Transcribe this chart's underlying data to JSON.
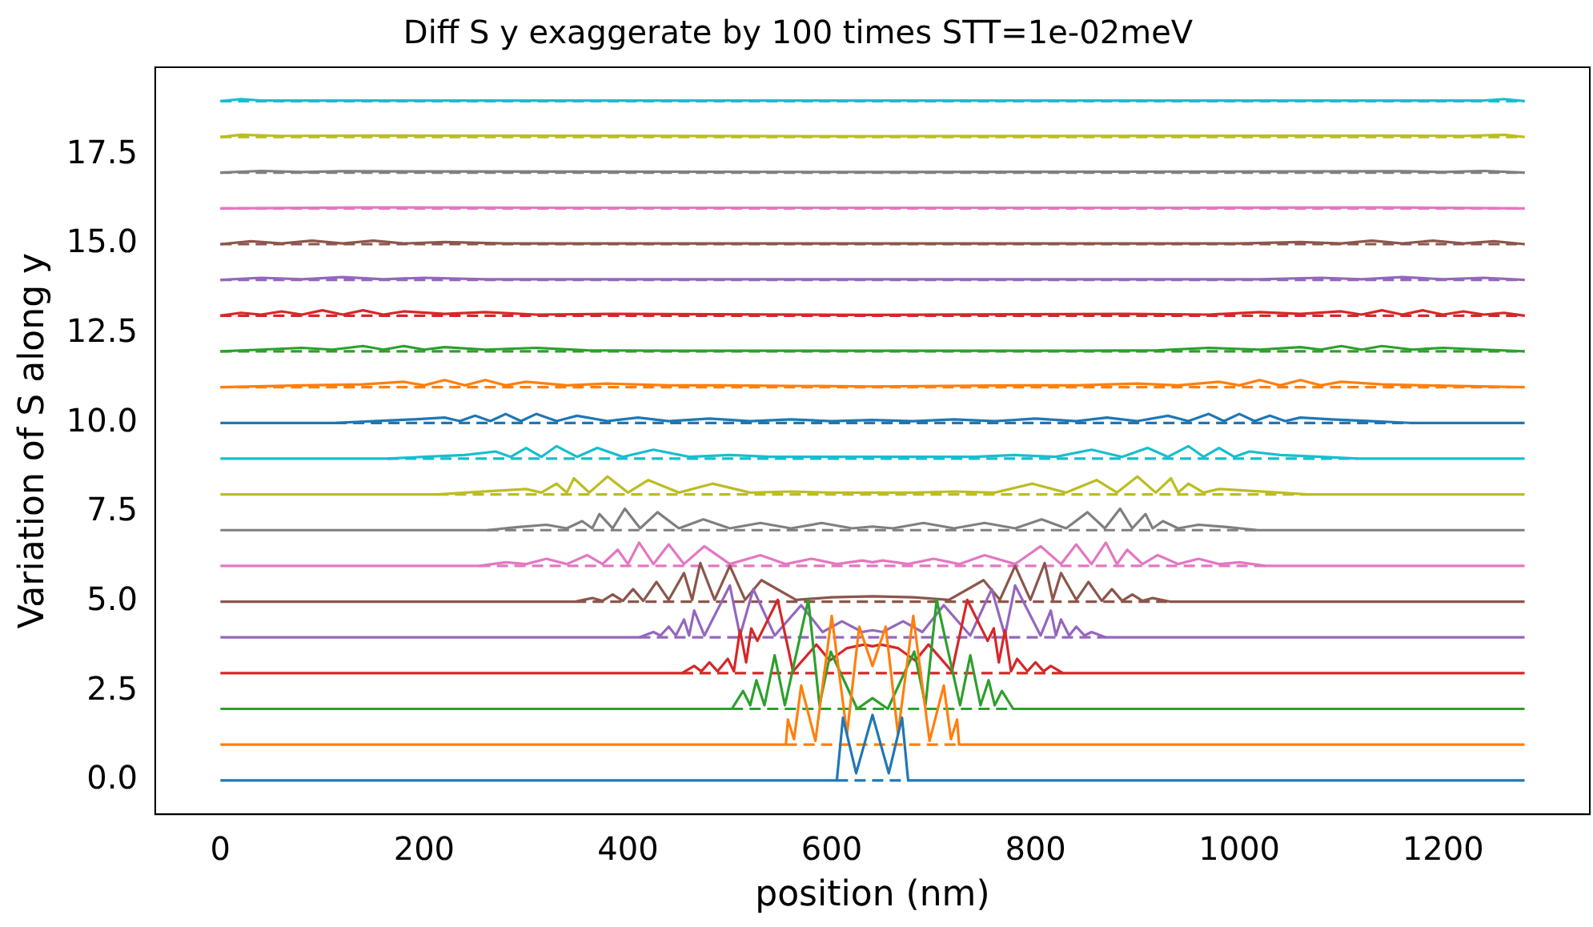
{
  "chart_data": {
    "type": "line",
    "title": "Diff S y exaggerate by 100 times STT=1e-02meV",
    "xlabel": "position (nm)",
    "ylabel": "Variation of S along y",
    "xlim": [
      -64,
      1344
    ],
    "ylim": [
      -0.95,
      19.95
    ],
    "xticks": [
      0,
      200,
      400,
      600,
      800,
      1000,
      1200
    ],
    "yticks": [
      {
        "value": 0,
        "label": "0.0"
      },
      {
        "value": 2.5,
        "label": "2.5"
      },
      {
        "value": 5,
        "label": "5.0"
      },
      {
        "value": 7.5,
        "label": "7.5"
      },
      {
        "value": 10,
        "label": "10.0"
      },
      {
        "value": 12.5,
        "label": "12.5"
      },
      {
        "value": 15,
        "label": "15.0"
      },
      {
        "value": 17.5,
        "label": "17.5"
      }
    ],
    "grid": false,
    "legend": false,
    "marker": "none",
    "series": [
      {
        "color": "#1f77b4",
        "line_style": "solid",
        "x": [
          0,
          605,
          611,
          624,
          640,
          656,
          669,
          675,
          1280
        ],
        "values": [
          0,
          0,
          1.75,
          0.2,
          1.83,
          0.2,
          1.75,
          0,
          0
        ]
      },
      {
        "color": "#1f77b4",
        "line_style": "dashed",
        "x": [
          605,
          675
        ],
        "values": [
          0,
          0
        ]
      },
      {
        "color": "#ff7f0e",
        "line_style": "solid",
        "x": [
          0,
          555,
          557,
          563,
          570,
          584,
          600,
          615,
          627,
          640,
          653,
          665,
          680,
          696,
          710,
          717,
          723,
          725,
          1280
        ],
        "values": [
          1,
          1,
          1.7,
          1.15,
          2.65,
          1.1,
          4.6,
          1.3,
          4.3,
          3.2,
          4.3,
          1.3,
          4.6,
          1.1,
          2.65,
          1.15,
          1.7,
          1,
          1
        ]
      },
      {
        "color": "#ff7f0e",
        "line_style": "dashed",
        "x": [
          555,
          725
        ],
        "values": [
          1,
          1
        ]
      },
      {
        "color": "#2ca02c",
        "line_style": "solid",
        "x": [
          0,
          502,
          513,
          520,
          526,
          534,
          544,
          554,
          577,
          588,
          599,
          625,
          640,
          655,
          681,
          692,
          703,
          726,
          736,
          746,
          754,
          760,
          767,
          778,
          1280
        ],
        "values": [
          2,
          2,
          2.5,
          2.1,
          2.8,
          2.1,
          3.5,
          2.1,
          5.05,
          2.1,
          3.6,
          2,
          2.3,
          2,
          3.6,
          2.1,
          5.05,
          2.1,
          3.5,
          2.1,
          2.8,
          2.1,
          2.5,
          2,
          2
        ]
      },
      {
        "color": "#2ca02c",
        "line_style": "dashed",
        "x": [
          502,
          778
        ],
        "values": [
          2,
          2
        ]
      },
      {
        "color": "#d62728",
        "line_style": "solid",
        "x": [
          0,
          453,
          465,
          472,
          480,
          488,
          498,
          504,
          510,
          516,
          521,
          527,
          547,
          562,
          585,
          598,
          615,
          632,
          640,
          648,
          665,
          682,
          695,
          718,
          733,
          753,
          759,
          764,
          770,
          776,
          782,
          792,
          800,
          808,
          815,
          827,
          1280
        ],
        "values": [
          3,
          3,
          3.2,
          3.05,
          3.3,
          3.05,
          3.4,
          3.05,
          4.2,
          3.3,
          4.25,
          3.9,
          5.05,
          3.05,
          3.8,
          3.35,
          3.7,
          3.8,
          3.75,
          3.8,
          3.7,
          3.35,
          3.8,
          3.05,
          5.05,
          3.9,
          4.25,
          3.3,
          4.2,
          3.05,
          3.4,
          3.05,
          3.3,
          3.05,
          3.2,
          3,
          3
        ]
      },
      {
        "color": "#d62728",
        "line_style": "dashed",
        "x": [
          453,
          827
        ],
        "values": [
          3,
          3
        ]
      },
      {
        "color": "#9467bd",
        "line_style": "solid",
        "x": [
          0,
          411,
          425,
          432,
          440,
          447,
          455,
          460,
          465,
          475,
          500,
          510,
          523,
          544,
          570,
          591,
          610,
          630,
          640,
          650,
          670,
          689,
          710,
          736,
          757,
          770,
          780,
          805,
          815,
          820,
          825,
          833,
          840,
          848,
          855,
          869,
          1280
        ],
        "values": [
          4,
          4,
          4.15,
          4.05,
          4.3,
          4.05,
          4.5,
          4.05,
          4.75,
          4.05,
          5.45,
          4.05,
          5.35,
          4.05,
          4.9,
          4.15,
          4.45,
          4.15,
          4.2,
          4.15,
          4.45,
          4.15,
          4.9,
          4.05,
          5.35,
          4.05,
          5.45,
          4.05,
          4.75,
          4.05,
          4.5,
          4.05,
          4.3,
          4.05,
          4.15,
          4,
          4
        ]
      },
      {
        "color": "#9467bd",
        "line_style": "dashed",
        "x": [
          411,
          869
        ],
        "values": [
          4,
          4
        ]
      },
      {
        "color": "#8c564b",
        "line_style": "solid",
        "x": [
          0,
          348,
          365,
          375,
          385,
          395,
          405,
          415,
          428,
          440,
          455,
          463,
          471,
          485,
          500,
          515,
          531,
          565,
          600,
          640,
          680,
          715,
          749,
          765,
          780,
          795,
          809,
          817,
          825,
          840,
          852,
          865,
          875,
          885,
          895,
          905,
          915,
          932,
          1280
        ],
        "values": [
          5,
          5,
          5.1,
          5.02,
          5.2,
          5.02,
          5.35,
          5.02,
          5.55,
          5.05,
          5.8,
          5.05,
          6.08,
          5.05,
          6,
          5.05,
          5.6,
          5.05,
          5.12,
          5.15,
          5.12,
          5.05,
          5.6,
          5.05,
          6,
          5.05,
          6.08,
          5.05,
          5.8,
          5.05,
          5.55,
          5.02,
          5.35,
          5.02,
          5.2,
          5.02,
          5.1,
          5,
          5
        ]
      },
      {
        "color": "#8c564b",
        "line_style": "dashed",
        "x": [
          348,
          932
        ],
        "values": [
          5,
          5
        ]
      },
      {
        "color": "#e377c2",
        "line_style": "solid",
        "x": [
          0,
          254,
          280,
          300,
          320,
          340,
          360,
          375,
          390,
          400,
          411,
          425,
          440,
          455,
          475,
          500,
          530,
          555,
          580,
          605,
          630,
          640,
          650,
          675,
          700,
          725,
          750,
          780,
          805,
          825,
          840,
          855,
          869,
          880,
          890,
          905,
          920,
          940,
          960,
          980,
          1000,
          1026,
          1280
        ],
        "values": [
          6,
          6,
          6.1,
          6.05,
          6.2,
          6.05,
          6.3,
          6.05,
          6.45,
          6.05,
          6.65,
          6.05,
          6.6,
          6.05,
          6.55,
          6.05,
          6.3,
          6.05,
          6.2,
          6.05,
          6.15,
          6.1,
          6.15,
          6.05,
          6.2,
          6.05,
          6.3,
          6.05,
          6.55,
          6.05,
          6.6,
          6.05,
          6.65,
          6.05,
          6.45,
          6.05,
          6.3,
          6.05,
          6.2,
          6.05,
          6.1,
          6,
          6
        ]
      },
      {
        "color": "#e377c2",
        "line_style": "dashed",
        "x": [
          254,
          1026
        ],
        "values": [
          6,
          6
        ]
      },
      {
        "color": "#7f7f7f",
        "line_style": "solid",
        "x": [
          0,
          262,
          290,
          320,
          340,
          355,
          365,
          372,
          385,
          397,
          412,
          429,
          450,
          474,
          500,
          530,
          560,
          590,
          620,
          640,
          660,
          690,
          720,
          750,
          780,
          806,
          830,
          851,
          868,
          883,
          895,
          908,
          915,
          925,
          940,
          960,
          990,
          1018,
          1280
        ],
        "values": [
          7,
          7,
          7.08,
          7.15,
          7.05,
          7.25,
          7.05,
          7.45,
          7.05,
          7.6,
          7.05,
          7.5,
          7.05,
          7.3,
          7.05,
          7.2,
          7.05,
          7.2,
          7.05,
          7.1,
          7.05,
          7.2,
          7.05,
          7.2,
          7.05,
          7.3,
          7.05,
          7.5,
          7.05,
          7.6,
          7.05,
          7.45,
          7.05,
          7.25,
          7.05,
          7.15,
          7.08,
          7,
          7
        ]
      },
      {
        "color": "#7f7f7f",
        "line_style": "dashed",
        "x": [
          262,
          1018
        ],
        "values": [
          7,
          7
        ]
      },
      {
        "color": "#bcbd22",
        "line_style": "solid",
        "x": [
          0,
          213,
          240,
          270,
          300,
          315,
          330,
          340,
          347,
          362,
          380,
          400,
          420,
          450,
          483,
          520,
          560,
          600,
          640,
          680,
          720,
          760,
          797,
          830,
          860,
          880,
          900,
          918,
          933,
          940,
          950,
          965,
          980,
          1010,
          1040,
          1067,
          1280
        ],
        "values": [
          8,
          8,
          8.05,
          8.1,
          8.15,
          8.05,
          8.3,
          8.05,
          8.45,
          8.05,
          8.5,
          8.05,
          8.4,
          8.05,
          8.3,
          8.05,
          8.08,
          8.05,
          8.05,
          8.05,
          8.08,
          8.05,
          8.3,
          8.05,
          8.4,
          8.05,
          8.5,
          8.05,
          8.45,
          8.05,
          8.3,
          8.05,
          8.15,
          8.1,
          8.05,
          8,
          8
        ]
      },
      {
        "color": "#bcbd22",
        "line_style": "dashed",
        "x": [
          213,
          1067
        ],
        "values": [
          8,
          8
        ]
      },
      {
        "color": "#17becf",
        "line_style": "solid",
        "x": [
          0,
          164,
          200,
          240,
          270,
          285,
          300,
          315,
          330,
          350,
          370,
          395,
          425,
          460,
          500,
          540,
          590,
          640,
          690,
          740,
          780,
          820,
          855,
          885,
          910,
          930,
          950,
          965,
          980,
          995,
          1010,
          1040,
          1080,
          1116,
          1280
        ],
        "values": [
          9,
          9,
          9.05,
          9.1,
          9.2,
          9.05,
          9.3,
          9.05,
          9.35,
          9.05,
          9.3,
          9.05,
          9.25,
          9.05,
          9.1,
          9.05,
          9.05,
          9.05,
          9.05,
          9.05,
          9.1,
          9.05,
          9.25,
          9.05,
          9.3,
          9.05,
          9.35,
          9.05,
          9.3,
          9.05,
          9.2,
          9.1,
          9.05,
          9,
          9
        ]
      },
      {
        "color": "#17becf",
        "line_style": "dashed",
        "x": [
          164,
          1116
        ],
        "values": [
          9,
          9
        ]
      },
      {
        "color": "#1f77b4",
        "line_style": "solid",
        "x": [
          0,
          113,
          150,
          190,
          220,
          235,
          250,
          265,
          280,
          295,
          310,
          330,
          350,
          380,
          410,
          440,
          480,
          520,
          560,
          600,
          640,
          680,
          720,
          760,
          800,
          840,
          870,
          900,
          930,
          950,
          970,
          985,
          1000,
          1015,
          1030,
          1045,
          1060,
          1090,
          1130,
          1167,
          1280
        ],
        "values": [
          10,
          10,
          10.05,
          10.1,
          10.15,
          10.05,
          10.2,
          10.05,
          10.25,
          10.05,
          10.25,
          10.05,
          10.2,
          10.05,
          10.15,
          10.05,
          10.12,
          10.05,
          10.1,
          10.05,
          10.08,
          10.05,
          10.1,
          10.05,
          10.12,
          10.05,
          10.15,
          10.05,
          10.2,
          10.05,
          10.25,
          10.05,
          10.25,
          10.05,
          10.2,
          10.05,
          10.15,
          10.1,
          10.05,
          10,
          10
        ]
      },
      {
        "color": "#1f77b4",
        "line_style": "dashed",
        "x": [
          113,
          1167
        ],
        "values": [
          10,
          10
        ]
      },
      {
        "color": "#ff7f0e",
        "line_style": "solid",
        "x": [
          0,
          80,
          140,
          180,
          200,
          220,
          240,
          260,
          280,
          300,
          340,
          380,
          440,
          490,
          640,
          790,
          840,
          900,
          940,
          980,
          1000,
          1020,
          1040,
          1060,
          1080,
          1100,
          1140,
          1180,
          1280
        ],
        "values": [
          11,
          11.05,
          11.08,
          11.15,
          11.05,
          11.2,
          11.05,
          11.2,
          11.05,
          11.15,
          11.05,
          11.1,
          11.05,
          11.05,
          11.02,
          11.05,
          11.05,
          11.1,
          11.05,
          11.15,
          11.05,
          11.2,
          11.05,
          11.2,
          11.05,
          11.15,
          11.08,
          11.05,
          11
        ]
      },
      {
        "color": "#ff7f0e",
        "line_style": "dashed",
        "x": [
          0,
          1280
        ],
        "values": [
          11,
          11
        ]
      },
      {
        "color": "#2ca02c",
        "line_style": "solid",
        "x": [
          0,
          40,
          80,
          110,
          140,
          160,
          180,
          200,
          220,
          260,
          310,
          360,
          440,
          640,
          840,
          920,
          970,
          1020,
          1060,
          1080,
          1100,
          1120,
          1140,
          1170,
          1200,
          1240,
          1280
        ],
        "values": [
          12,
          12.05,
          12.1,
          12.05,
          12.15,
          12.05,
          12.15,
          12.05,
          12.12,
          12.05,
          12.1,
          12.03,
          12.02,
          12.02,
          12.02,
          12.03,
          12.1,
          12.05,
          12.12,
          12.05,
          12.15,
          12.05,
          12.15,
          12.05,
          12.1,
          12.05,
          12
        ]
      },
      {
        "color": "#2ca02c",
        "line_style": "dashed",
        "x": [
          0,
          1280
        ],
        "values": [
          12,
          12
        ]
      },
      {
        "color": "#d62728",
        "line_style": "solid",
        "x": [
          0,
          20,
          40,
          60,
          80,
          100,
          120,
          140,
          160,
          180,
          220,
          260,
          310,
          390,
          640,
          890,
          970,
          1020,
          1060,
          1100,
          1120,
          1140,
          1160,
          1180,
          1200,
          1220,
          1240,
          1260,
          1280
        ],
        "values": [
          13,
          13.08,
          13.03,
          13.12,
          13.03,
          13.15,
          13.03,
          13.15,
          13.03,
          13.12,
          13.05,
          13.1,
          13.03,
          13.05,
          13.02,
          13.05,
          13.03,
          13.1,
          13.05,
          13.12,
          13.03,
          13.15,
          13.03,
          13.15,
          13.03,
          13.12,
          13.03,
          13.08,
          13
        ]
      },
      {
        "color": "#d62728",
        "line_style": "dashed",
        "x": [
          0,
          1280
        ],
        "values": [
          13,
          13
        ]
      },
      {
        "color": "#9467bd",
        "line_style": "solid",
        "x": [
          0,
          40,
          80,
          120,
          160,
          200,
          260,
          640,
          1020,
          1080,
          1120,
          1160,
          1200,
          1240,
          1280
        ],
        "values": [
          14,
          14.06,
          14.02,
          14.08,
          14.02,
          14.06,
          14.02,
          14.02,
          14.02,
          14.06,
          14.02,
          14.08,
          14.02,
          14.06,
          14
        ]
      },
      {
        "color": "#9467bd",
        "line_style": "dashed",
        "x": [
          0,
          1280
        ],
        "values": [
          14,
          14
        ]
      },
      {
        "color": "#8c564b",
        "line_style": "solid",
        "x": [
          0,
          30,
          60,
          90,
          120,
          150,
          180,
          220,
          280,
          640,
          1000,
          1060,
          1100,
          1130,
          1160,
          1190,
          1220,
          1250,
          1280
        ],
        "values": [
          15,
          15.08,
          15.02,
          15.1,
          15.02,
          15.1,
          15.02,
          15.06,
          15.02,
          15.02,
          15.02,
          15.06,
          15.02,
          15.1,
          15.02,
          15.1,
          15.02,
          15.08,
          15
        ]
      },
      {
        "color": "#8c564b",
        "line_style": "dashed",
        "x": [
          0,
          1280
        ],
        "values": [
          15,
          15
        ]
      },
      {
        "color": "#e377c2",
        "line_style": "solid",
        "x": [
          0,
          140,
          340,
          640,
          940,
          1140,
          1280
        ],
        "values": [
          16,
          16.03,
          16.02,
          16.02,
          16.02,
          16.03,
          16
        ]
      },
      {
        "color": "#e377c2",
        "line_style": "dashed",
        "x": [
          0,
          1280
        ],
        "values": [
          16,
          16
        ]
      },
      {
        "color": "#7f7f7f",
        "line_style": "solid",
        "x": [
          0,
          40,
          80,
          120,
          640,
          1160,
          1200,
          1240,
          1280
        ],
        "values": [
          17,
          17.05,
          17.02,
          17.04,
          17.02,
          17.04,
          17.02,
          17.05,
          17
        ]
      },
      {
        "color": "#7f7f7f",
        "line_style": "dashed",
        "x": [
          0,
          1280
        ],
        "values": [
          17,
          17
        ]
      },
      {
        "color": "#bcbd22",
        "line_style": "solid",
        "x": [
          0,
          20,
          60,
          140,
          640,
          1140,
          1220,
          1260,
          1280
        ],
        "values": [
          18,
          18.06,
          18.03,
          18.04,
          18.02,
          18.04,
          18.03,
          18.06,
          18
        ]
      },
      {
        "color": "#bcbd22",
        "line_style": "dashed",
        "x": [
          0,
          1280
        ],
        "values": [
          18,
          18
        ]
      },
      {
        "color": "#17becf",
        "line_style": "solid",
        "x": [
          0,
          20,
          40,
          340,
          640,
          940,
          1240,
          1260,
          1280
        ],
        "values": [
          19,
          19.06,
          19.02,
          19.02,
          19.02,
          19.02,
          19.02,
          19.06,
          19
        ]
      },
      {
        "color": "#17becf",
        "line_style": "dashed",
        "x": [
          0,
          1280
        ],
        "values": [
          19,
          19
        ]
      }
    ]
  }
}
